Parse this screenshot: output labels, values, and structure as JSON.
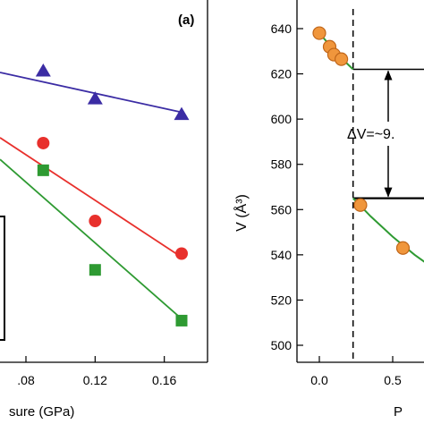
{
  "chart_data": [
    {
      "type": "scatter",
      "panel_label": "(a)",
      "xlabel": "sure (GPa)",
      "ylabel": "",
      "xlim": [
        0.065,
        0.185
      ],
      "ylim": [
        0,
        1
      ],
      "x_ticks": [
        0.08,
        0.12,
        0.16
      ],
      "x_tick_labels": [
        ".08",
        "0.12",
        "0.16"
      ],
      "series": [
        {
          "color": "#3b2ca4",
          "marker": "triangle",
          "points": [
            {
              "x": 0.09,
              "y": 0.805
            },
            {
              "x": 0.12,
              "y": 0.728
            },
            {
              "x": 0.17,
              "y": 0.685
            }
          ],
          "fit": [
            {
              "x": 0.065,
              "y": 0.8
            },
            {
              "x": 0.17,
              "y": 0.69
            }
          ]
        },
        {
          "color": "#e8302c",
          "marker": "circle",
          "points": [
            {
              "x": 0.09,
              "y": 0.605
            },
            {
              "x": 0.12,
              "y": 0.39
            },
            {
              "x": 0.17,
              "y": 0.3
            }
          ],
          "fit": [
            {
              "x": 0.065,
              "y": 0.62
            },
            {
              "x": 0.17,
              "y": 0.29
            }
          ]
        },
        {
          "color": "#2e9a32",
          "marker": "square",
          "points": [
            {
              "x": 0.09,
              "y": 0.53
            },
            {
              "x": 0.12,
              "y": 0.255
            },
            {
              "x": 0.17,
              "y": 0.115
            }
          ],
          "fit": [
            {
              "x": 0.065,
              "y": 0.56
            },
            {
              "x": 0.17,
              "y": 0.12
            }
          ]
        }
      ]
    },
    {
      "type": "scatter",
      "xlabel": "P",
      "ylabel": "V (Å³)",
      "xlim": [
        -0.1,
        0.8
      ],
      "ylim": [
        495,
        645
      ],
      "y_ticks": [
        500,
        520,
        540,
        560,
        580,
        600,
        620,
        640
      ],
      "x_ticks": [
        0.0,
        0.5
      ],
      "x_tick_labels": [
        "0.0",
        "0.5"
      ],
      "annotation": "ΔV=~9.",
      "transition_pressure": 0.23,
      "levels": [
        622,
        565
      ],
      "series": [
        {
          "color": "#f0963c",
          "marker": "circle",
          "points": [
            {
              "x": 0.0,
              "y": 638
            },
            {
              "x": 0.07,
              "y": 632
            },
            {
              "x": 0.1,
              "y": 628.5
            },
            {
              "x": 0.15,
              "y": 626.5
            },
            {
              "x": 0.28,
              "y": 562
            },
            {
              "x": 0.57,
              "y": 543
            }
          ]
        }
      ],
      "fits": [
        {
          "color": "#2e9a32",
          "points": [
            {
              "x": 0.0,
              "y": 638
            },
            {
              "x": 0.08,
              "y": 632
            },
            {
              "x": 0.15,
              "y": 627
            },
            {
              "x": 0.23,
              "y": 622
            }
          ]
        },
        {
          "color": "#2e9a32",
          "points": [
            {
              "x": 0.23,
              "y": 565
            },
            {
              "x": 0.35,
              "y": 557
            },
            {
              "x": 0.5,
              "y": 548
            },
            {
              "x": 0.65,
              "y": 540
            },
            {
              "x": 0.8,
              "y": 533
            }
          ]
        }
      ]
    }
  ]
}
